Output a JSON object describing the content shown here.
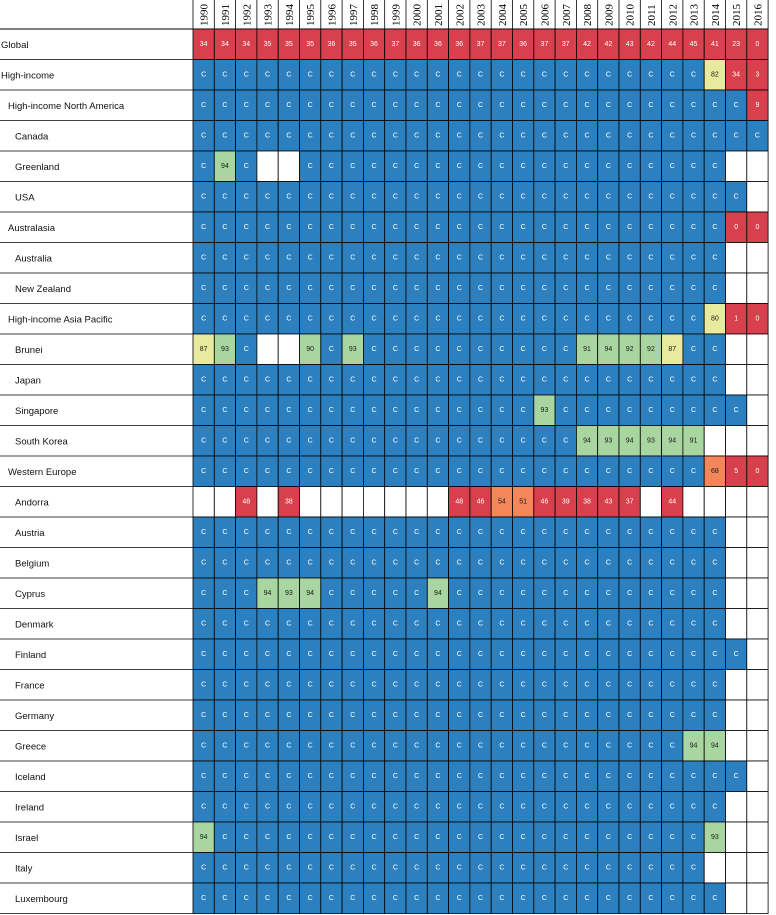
{
  "chart_data": {
    "type": "heatmap",
    "years": [
      "1990",
      "1991",
      "1992",
      "1993",
      "1994",
      "1995",
      "1996",
      "1997",
      "1998",
      "1999",
      "2000",
      "2001",
      "2002",
      "2003",
      "2004",
      "2005",
      "2006",
      "2007",
      "2008",
      "2009",
      "2010",
      "2011",
      "2012",
      "2013",
      "2014",
      "2015",
      "2016"
    ],
    "color_key": {
      "C": "#2d80bf",
      "high_90": "#a9d6a0",
      "80s": "#e8eb9d",
      "50s_60s": "#f3875a",
      "below_50": "#d8404d",
      "blank": "#ffffff"
    },
    "rows": [
      {
        "label": "Global",
        "level": 0,
        "values": [
          34,
          34,
          34,
          35,
          35,
          35,
          36,
          35,
          36,
          37,
          36,
          36,
          36,
          37,
          37,
          36,
          37,
          37,
          42,
          42,
          43,
          42,
          44,
          45,
          41,
          23,
          0
        ]
      },
      {
        "label": "High-income",
        "level": 0,
        "values": [
          "C",
          "C",
          "C",
          "C",
          "C",
          "C",
          "C",
          "C",
          "C",
          "C",
          "C",
          "C",
          "C",
          "C",
          "C",
          "C",
          "C",
          "C",
          "C",
          "C",
          "C",
          "C",
          "C",
          "C",
          82,
          34,
          3
        ]
      },
      {
        "label": "High-income North America",
        "level": 1,
        "values": [
          "C",
          "C",
          "C",
          "C",
          "C",
          "C",
          "C",
          "C",
          "C",
          "C",
          "C",
          "C",
          "C",
          "C",
          "C",
          "C",
          "C",
          "C",
          "C",
          "C",
          "C",
          "C",
          "C",
          "C",
          "C",
          "C",
          9
        ]
      },
      {
        "label": "Canada",
        "level": 2,
        "values": [
          "C",
          "C",
          "C",
          "C",
          "C",
          "C",
          "C",
          "C",
          "C",
          "C",
          "C",
          "C",
          "C",
          "C",
          "C",
          "C",
          "C",
          "C",
          "C",
          "C",
          "C",
          "C",
          "C",
          "C",
          "C",
          "C",
          "C"
        ]
      },
      {
        "label": "Greenland",
        "level": 2,
        "values": [
          "C",
          94,
          "C",
          null,
          null,
          "C",
          "C",
          "C",
          "C",
          "C",
          "C",
          "C",
          "C",
          "C",
          "C",
          "C",
          "C",
          "C",
          "C",
          "C",
          "C",
          "C",
          "C",
          "C",
          "C",
          null,
          null
        ]
      },
      {
        "label": "USA",
        "level": 2,
        "values": [
          "C",
          "C",
          "C",
          "C",
          "C",
          "C",
          "C",
          "C",
          "C",
          "C",
          "C",
          "C",
          "C",
          "C",
          "C",
          "C",
          "C",
          "C",
          "C",
          "C",
          "C",
          "C",
          "C",
          "C",
          "C",
          "C",
          null
        ]
      },
      {
        "label": "Australasia",
        "level": 1,
        "values": [
          "C",
          "C",
          "C",
          "C",
          "C",
          "C",
          "C",
          "C",
          "C",
          "C",
          "C",
          "C",
          "C",
          "C",
          "C",
          "C",
          "C",
          "C",
          "C",
          "C",
          "C",
          "C",
          "C",
          "C",
          "C",
          0,
          0
        ]
      },
      {
        "label": "Australia",
        "level": 2,
        "values": [
          "C",
          "C",
          "C",
          "C",
          "C",
          "C",
          "C",
          "C",
          "C",
          "C",
          "C",
          "C",
          "C",
          "C",
          "C",
          "C",
          "C",
          "C",
          "C",
          "C",
          "C",
          "C",
          "C",
          "C",
          "C",
          null,
          null
        ]
      },
      {
        "label": "New Zealand",
        "level": 2,
        "values": [
          "C",
          "C",
          "C",
          "C",
          "C",
          "C",
          "C",
          "C",
          "C",
          "C",
          "C",
          "C",
          "C",
          "C",
          "C",
          "C",
          "C",
          "C",
          "C",
          "C",
          "C",
          "C",
          "C",
          "C",
          "C",
          null,
          null
        ]
      },
      {
        "label": "High-income Asia Pacific",
        "level": 1,
        "values": [
          "C",
          "C",
          "C",
          "C",
          "C",
          "C",
          "C",
          "C",
          "C",
          "C",
          "C",
          "C",
          "C",
          "C",
          "C",
          "C",
          "C",
          "C",
          "C",
          "C",
          "C",
          "C",
          "C",
          "C",
          80,
          1,
          0
        ]
      },
      {
        "label": "Brunei",
        "level": 2,
        "values": [
          87,
          93,
          "C",
          null,
          null,
          90,
          "C",
          93,
          "C",
          "C",
          "C",
          "C",
          "C",
          "C",
          "C",
          "C",
          "C",
          "C",
          91,
          94,
          92,
          92,
          87,
          "C",
          "C",
          null,
          null
        ]
      },
      {
        "label": "Japan",
        "level": 2,
        "values": [
          "C",
          "C",
          "C",
          "C",
          "C",
          "C",
          "C",
          "C",
          "C",
          "C",
          "C",
          "C",
          "C",
          "C",
          "C",
          "C",
          "C",
          "C",
          "C",
          "C",
          "C",
          "C",
          "C",
          "C",
          "C",
          null,
          null
        ]
      },
      {
        "label": "Singapore",
        "level": 2,
        "values": [
          "C",
          "C",
          "C",
          "C",
          "C",
          "C",
          "C",
          "C",
          "C",
          "C",
          "C",
          "C",
          "C",
          "C",
          "C",
          "C",
          93,
          "C",
          "C",
          "C",
          "C",
          "C",
          "C",
          "C",
          "C",
          "C",
          null
        ]
      },
      {
        "label": "South Korea",
        "level": 2,
        "values": [
          "C",
          "C",
          "C",
          "C",
          "C",
          "C",
          "C",
          "C",
          "C",
          "C",
          "C",
          "C",
          "C",
          "C",
          "C",
          "C",
          "C",
          "C",
          94,
          93,
          94,
          93,
          94,
          91,
          null,
          null,
          null
        ]
      },
      {
        "label": "Western Europe",
        "level": 1,
        "values": [
          "C",
          "C",
          "C",
          "C",
          "C",
          "C",
          "C",
          "C",
          "C",
          "C",
          "C",
          "C",
          "C",
          "C",
          "C",
          "C",
          "C",
          "C",
          "C",
          "C",
          "C",
          "C",
          "C",
          "C",
          68,
          5,
          0
        ]
      },
      {
        "label": "Andorra",
        "level": 2,
        "values": [
          null,
          null,
          48,
          null,
          38,
          null,
          null,
          null,
          null,
          null,
          null,
          null,
          48,
          46,
          54,
          51,
          46,
          39,
          38,
          43,
          37,
          null,
          44,
          null,
          null,
          null,
          null
        ]
      },
      {
        "label": "Austria",
        "level": 2,
        "values": [
          "C",
          "C",
          "C",
          "C",
          "C",
          "C",
          "C",
          "C",
          "C",
          "C",
          "C",
          "C",
          "C",
          "C",
          "C",
          "C",
          "C",
          "C",
          "C",
          "C",
          "C",
          "C",
          "C",
          "C",
          "C",
          null,
          null
        ]
      },
      {
        "label": "Belgium",
        "level": 2,
        "values": [
          "C",
          "C",
          "C",
          "C",
          "C",
          "C",
          "C",
          "C",
          "C",
          "C",
          "C",
          "C",
          "C",
          "C",
          "C",
          "C",
          "C",
          "C",
          "C",
          "C",
          "C",
          "C",
          "C",
          "C",
          "C",
          null,
          null
        ]
      },
      {
        "label": "Cyprus",
        "level": 2,
        "values": [
          "C",
          "C",
          "C",
          94,
          93,
          94,
          "C",
          "C",
          "C",
          "C",
          "C",
          94,
          "C",
          "C",
          "C",
          "C",
          "C",
          "C",
          "C",
          "C",
          "C",
          "C",
          "C",
          "C",
          "C",
          null,
          null
        ]
      },
      {
        "label": "Denmark",
        "level": 2,
        "values": [
          "C",
          "C",
          "C",
          "C",
          "C",
          "C",
          "C",
          "C",
          "C",
          "C",
          "C",
          "C",
          "C",
          "C",
          "C",
          "C",
          "C",
          "C",
          "C",
          "C",
          "C",
          "C",
          "C",
          "C",
          "C",
          null,
          null
        ]
      },
      {
        "label": "Finland",
        "level": 2,
        "values": [
          "C",
          "C",
          "C",
          "C",
          "C",
          "C",
          "C",
          "C",
          "C",
          "C",
          "C",
          "C",
          "C",
          "C",
          "C",
          "C",
          "C",
          "C",
          "C",
          "C",
          "C",
          "C",
          "C",
          "C",
          "C",
          "C",
          null
        ]
      },
      {
        "label": "France",
        "level": 2,
        "values": [
          "C",
          "C",
          "C",
          "C",
          "C",
          "C",
          "C",
          "C",
          "C",
          "C",
          "C",
          "C",
          "C",
          "C",
          "C",
          "C",
          "C",
          "C",
          "C",
          "C",
          "C",
          "C",
          "C",
          "C",
          "C",
          null,
          null
        ]
      },
      {
        "label": "Germany",
        "level": 2,
        "values": [
          "C",
          "C",
          "C",
          "C",
          "C",
          "C",
          "C",
          "C",
          "C",
          "C",
          "C",
          "C",
          "C",
          "C",
          "C",
          "C",
          "C",
          "C",
          "C",
          "C",
          "C",
          "C",
          "C",
          "C",
          "C",
          null,
          null
        ]
      },
      {
        "label": "Greece",
        "level": 2,
        "values": [
          "C",
          "C",
          "C",
          "C",
          "C",
          "C",
          "C",
          "C",
          "C",
          "C",
          "C",
          "C",
          "C",
          "C",
          "C",
          "C",
          "C",
          "C",
          "C",
          "C",
          "C",
          "C",
          "C",
          94,
          94,
          null,
          null
        ]
      },
      {
        "label": "Iceland",
        "level": 2,
        "values": [
          "C",
          "C",
          "C",
          "C",
          "C",
          "C",
          "C",
          "C",
          "C",
          "C",
          "C",
          "C",
          "C",
          "C",
          "C",
          "C",
          "C",
          "C",
          "C",
          "C",
          "C",
          "C",
          "C",
          "C",
          "C",
          "C",
          null
        ]
      },
      {
        "label": "Ireland",
        "level": 2,
        "values": [
          "C",
          "C",
          "C",
          "C",
          "C",
          "C",
          "C",
          "C",
          "C",
          "C",
          "C",
          "C",
          "C",
          "C",
          "C",
          "C",
          "C",
          "C",
          "C",
          "C",
          "C",
          "C",
          "C",
          "C",
          "C",
          null,
          null
        ]
      },
      {
        "label": "Israel",
        "level": 2,
        "values": [
          94,
          "C",
          "C",
          "C",
          "C",
          "C",
          "C",
          "C",
          "C",
          "C",
          "C",
          "C",
          "C",
          "C",
          "C",
          "C",
          "C",
          "C",
          "C",
          "C",
          "C",
          "C",
          "C",
          "C",
          93,
          null,
          null
        ]
      },
      {
        "label": "Italy",
        "level": 2,
        "values": [
          "C",
          "C",
          "C",
          "C",
          "C",
          "C",
          "C",
          "C",
          "C",
          "C",
          "C",
          "C",
          "C",
          "C",
          "C",
          "C",
          "C",
          "C",
          "C",
          "C",
          "C",
          "C",
          "C",
          "C",
          null,
          null,
          null
        ]
      },
      {
        "label": "Luxembourg",
        "level": 2,
        "values": [
          "C",
          "C",
          "C",
          "C",
          "C",
          "C",
          "C",
          "C",
          "C",
          "C",
          "C",
          "C",
          "C",
          "C",
          "C",
          "C",
          "C",
          "C",
          "C",
          "C",
          "C",
          "C",
          "C",
          "C",
          "C",
          null,
          null
        ]
      }
    ]
  }
}
